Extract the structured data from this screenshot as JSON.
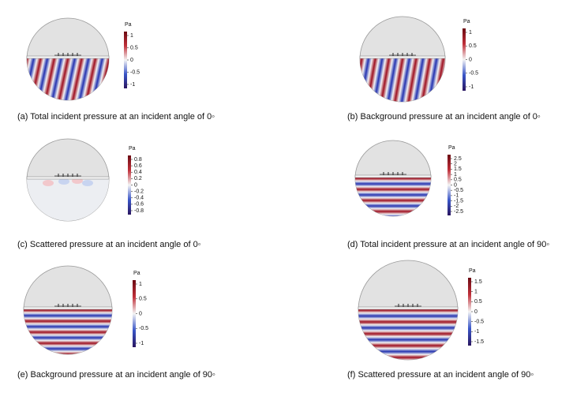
{
  "panels": [
    {
      "caption": "(a) Total incident pressure at an incident angle of 0◦",
      "unit": "Pa",
      "ticks": [
        "1",
        "0.5",
        "0",
        "-0.5",
        "-1"
      ]
    },
    {
      "caption": "(b) Background pressure at an incident angle of 0◦",
      "unit": "Pa",
      "ticks": [
        "1",
        "0.5",
        "0",
        "-0.5",
        "-1"
      ]
    },
    {
      "caption": "(c) Scattered pressure at an incident angle of 0◦",
      "unit": "Pa",
      "ticks": [
        "0.8",
        "0.6",
        "0.4",
        "0.2",
        "0",
        "-0.2",
        "-0.4",
        "-0.6",
        "-0.8"
      ]
    },
    {
      "caption": "(d) Total incident pressure at an incident angle of 90◦",
      "unit": "Pa",
      "ticks": [
        "2.5",
        "2",
        "1.5",
        "1",
        "0.5",
        "0",
        "-0.5",
        "-1",
        "-1.5",
        "-2",
        "-2.5"
      ]
    },
    {
      "caption": "(e) Background pressure at an incident angle of 90◦",
      "unit": "Pa",
      "ticks": [
        "1",
        "0.5",
        "0",
        "-0.5",
        "-1"
      ]
    },
    {
      "caption": "(f) Scattered pressure at an incident angle of 90◦",
      "unit": "Pa",
      "ticks": [
        "1.5",
        "1",
        "0.5",
        "0",
        "-0.5",
        "-1",
        "-1.5"
      ]
    }
  ]
}
